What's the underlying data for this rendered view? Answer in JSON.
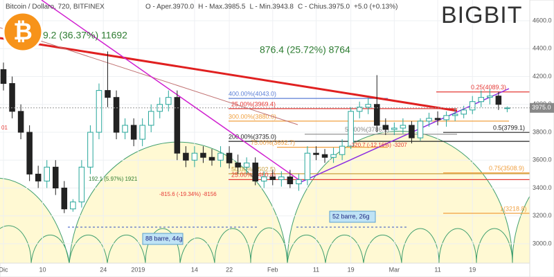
{
  "chart_data": {
    "type": "candlestick",
    "title": "Bitcoin / Dollaro, 720, BITFINEX",
    "ohlc_header": [
      "O - Aper.3970.0",
      "H - Max.3985.5",
      "L - Min.3943.8",
      "C - Chius.3975.0",
      "+5.0 (+0.13%)"
    ],
    "logo": "BIGBIT",
    "last_price": {
      "value": 3975.0,
      "label": "3975.0"
    },
    "x": [
      0,
      2,
      4,
      6,
      8,
      10,
      12,
      14,
      16,
      18,
      20,
      22,
      24,
      26,
      28,
      30,
      32,
      34,
      36,
      38,
      40,
      42,
      44,
      46,
      48,
      50,
      52,
      54,
      56,
      58,
      60,
      62,
      64,
      66,
      68,
      70,
      72,
      74,
      76,
      78,
      80,
      82,
      84,
      86,
      88,
      90,
      92,
      94,
      96,
      98,
      100,
      102,
      104,
      106,
      108,
      110,
      112,
      114,
      116
    ],
    "open": [
      4250,
      4150,
      3950,
      3800,
      3500,
      3450,
      3550,
      3400,
      3250,
      3300,
      3550,
      3800,
      4100,
      4050,
      3800,
      3850,
      3750,
      3850,
      3950,
      4000,
      4050,
      3650,
      3600,
      3650,
      3620,
      3600,
      3650,
      3580,
      3550,
      3580,
      3450,
      3480,
      3460,
      3480,
      3430,
      3460,
      3650,
      3640,
      3620,
      3640,
      3700,
      3950,
      3980,
      4000,
      3850,
      3820,
      3830,
      3850,
      3760,
      3880,
      3900,
      3890,
      3920,
      3930,
      3960,
      4020,
      4050,
      4060,
      3970
    ],
    "high": [
      4300,
      4200,
      4000,
      3850,
      3560,
      3600,
      3600,
      3450,
      3320,
      3600,
      3850,
      4150,
      4380,
      4100,
      3900,
      3900,
      3900,
      4000,
      4050,
      4100,
      4100,
      3700,
      3700,
      3700,
      3680,
      3700,
      3700,
      3640,
      3620,
      3620,
      3520,
      3530,
      3520,
      3530,
      3500,
      3700,
      3700,
      3680,
      3690,
      3750,
      3980,
      4020,
      4050,
      4210,
      3900,
      3870,
      3900,
      3880,
      3900,
      3940,
      3950,
      3950,
      3970,
      3990,
      4060,
      4100,
      4110,
      4090,
      3985.5
    ],
    "low": [
      4100,
      3900,
      3750,
      3450,
      3400,
      3400,
      3350,
      3220,
      3230,
      3260,
      3500,
      3750,
      3980,
      3750,
      3750,
      3700,
      3700,
      3800,
      3900,
      3950,
      3600,
      3550,
      3550,
      3580,
      3560,
      3550,
      3540,
      3500,
      3500,
      3420,
      3400,
      3420,
      3410,
      3400,
      3380,
      3420,
      3600,
      3580,
      3580,
      3600,
      3680,
      3900,
      3930,
      3800,
      3780,
      3780,
      3790,
      3720,
      3740,
      3840,
      3850,
      3840,
      3880,
      3900,
      3930,
      3980,
      4000,
      3960,
      3943.8
    ],
    "close": [
      4150,
      3950,
      3800,
      3500,
      3450,
      3550,
      3400,
      3250,
      3300,
      3550,
      3800,
      4100,
      4050,
      3800,
      3850,
      3750,
      3850,
      3950,
      4000,
      4050,
      3650,
      3600,
      3650,
      3620,
      3600,
      3650,
      3580,
      3550,
      3580,
      3450,
      3480,
      3460,
      3480,
      3430,
      3460,
      3650,
      3640,
      3620,
      3640,
      3700,
      3950,
      3980,
      4000,
      3850,
      3820,
      3830,
      3850,
      3760,
      3880,
      3900,
      3890,
      3920,
      3930,
      3960,
      4020,
      4050,
      4060,
      4000,
      3975.0
    ],
    "up_color": "#26a69a",
    "down_color": "#222222",
    "xlim": [
      -0.8,
      121.2
    ],
    "xticks": [
      {
        "value": 0,
        "label": "Dic"
      },
      {
        "value": 9,
        "label": "10"
      },
      {
        "value": 23,
        "label": "24"
      },
      {
        "value": 31,
        "label": "2019"
      },
      {
        "value": 44,
        "label": "14"
      },
      {
        "value": 52,
        "label": "22"
      },
      {
        "value": 62,
        "label": "Feb"
      },
      {
        "value": 72,
        "label": "11"
      },
      {
        "value": 80,
        "label": "19"
      },
      {
        "value": 90,
        "label": "Mar"
      },
      {
        "value": 100,
        "label": "11"
      },
      {
        "value": 108,
        "label": "19"
      }
    ],
    "ylim": [
      2861,
      4749
    ],
    "yticks": [
      {
        "value": 3000,
        "label": "3000.0"
      },
      {
        "value": 3200,
        "label": "3200.0"
      },
      {
        "value": 3400,
        "label": "3400.0"
      },
      {
        "value": 3600,
        "label": "3600.0"
      },
      {
        "value": 3800,
        "label": "3800.0"
      },
      {
        "value": 4000,
        "label": "4000.0"
      },
      {
        "value": 4200,
        "label": "4200.0"
      },
      {
        "value": 4400,
        "label": "4400.0"
      },
      {
        "value": 4600,
        "label": "4600.0"
      }
    ],
    "levels": [
      {
        "value": 4043.0,
        "label": "400.00%(4043.0)",
        "color": "#5b7fd6"
      },
      {
        "value": 3969.4,
        "label": "25.00%(3969.4)",
        "color": "#e53935"
      },
      {
        "value": 3880.0,
        "label": "300.00%(3880.0)",
        "color": "#f0a040"
      },
      {
        "value": 3786.1,
        "label": "50.00%(3786.1)",
        "color": "#888888"
      },
      {
        "value": 3735.0,
        "label": "200.00%(3735.0)",
        "color": "#222222"
      },
      {
        "value": 3692.7,
        "label": "75.00%(3692.7)",
        "color": "#f0a040"
      },
      {
        "value": 3502.5,
        "label": "50.00%(3502.5)",
        "color": "#c8a040"
      },
      {
        "value": 3460.4,
        "label": "25.00%(3460.4)",
        "color": "#e53935"
      },
      {
        "value": 4089.3,
        "label": "0.25(4089.3)",
        "color": "#e53935"
      },
      {
        "value": 3799.1,
        "label": "0.5(3799.1)",
        "color": "#222222"
      },
      {
        "value": 3508.9,
        "label": "0.75(3508.9)",
        "color": "#f0a040"
      },
      {
        "value": 3218.8,
        "label": "1(3218.8)",
        "color": "#f0a040"
      }
    ],
    "annotations": [
      "9.2 (36.37%) 11692",
      "876.4 (25.72%) 8764",
      "-320.7 (-12.16%) -3207",
      "192.1 (5.97%) 1921",
      "-815.6 (-19.34%) -8156",
      "88 barre, 44g",
      "52 barre, 26g",
      "01"
    ]
  }
}
